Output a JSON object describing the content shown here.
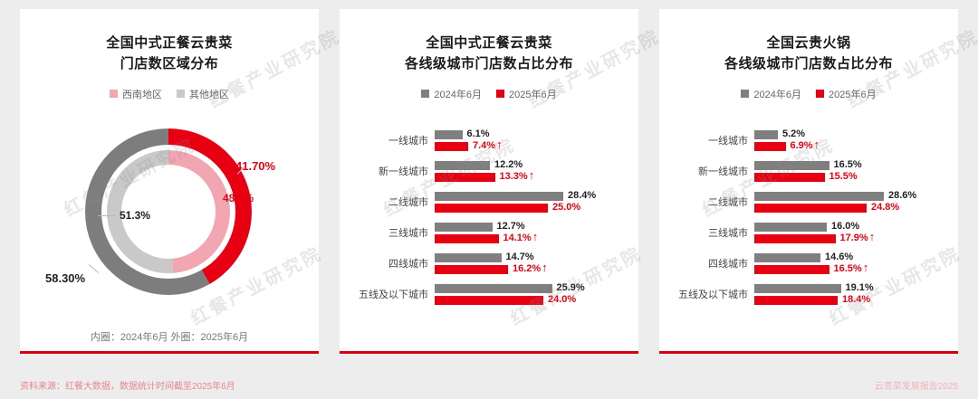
{
  "page": {
    "watermark": "红餐产业研究院",
    "footer_source": "资料来源：红餐大数据，数据统计时间截至2025年6月",
    "footer_report": "云贵菜发展报告2025"
  },
  "colors": {
    "accent_red": "#e60012",
    "bar_gray": "#7f7f7f",
    "inner_pink": "#f2a6b1",
    "inner_gray": "#c9c9c9",
    "outer_gray": "#7d7d7d",
    "panel_rule_red": "#d7000f"
  },
  "icons": {
    "up_arrow": "↑"
  },
  "chart_data": [
    {
      "type": "pie",
      "title_line1": "全国中式正餐云贵菜",
      "title_line2": "门店数区域分布",
      "legend": [
        {
          "label": "西南地区",
          "color": "#f2a6b1"
        },
        {
          "label": "其他地区",
          "color": "#c9c9c9"
        }
      ],
      "note": "内圈：2024年6月 外圈：2025年6月",
      "rings": [
        {
          "name": "内圈 2024年6月",
          "segments": [
            {
              "label": "西南地区",
              "value": 48.7,
              "display": "48.7%",
              "color": "#f2a6b1"
            },
            {
              "label": "其他地区",
              "value": 51.3,
              "display": "51.3%",
              "color": "#c9c9c9"
            }
          ]
        },
        {
          "name": "外圈 2025年6月",
          "segments": [
            {
              "label": "西南地区",
              "value": 41.7,
              "display": "41.70%",
              "color": "#e60012"
            },
            {
              "label": "其他地区",
              "value": 58.3,
              "display": "58.30%",
              "color": "#7d7d7d"
            }
          ]
        }
      ]
    },
    {
      "type": "bar",
      "orientation": "horizontal",
      "title_line1": "全国中式正餐云贵菜",
      "title_line2": "各线级城市门店数占比分布",
      "legend": [
        {
          "label": "2024年6月",
          "color": "#7f7f7f"
        },
        {
          "label": "2025年6月",
          "color": "#e60012"
        }
      ],
      "categories": [
        "一线城市",
        "新一线城市",
        "二线城市",
        "三线城市",
        "四线城市",
        "五线及以下城市"
      ],
      "xmax": 30,
      "series": [
        {
          "name": "2024年6月",
          "values": [
            6.1,
            12.2,
            28.4,
            12.7,
            14.7,
            25.9
          ],
          "labels": [
            "6.1%",
            "12.2%",
            "28.4%",
            "12.7%",
            "14.7%",
            "25.9%"
          ]
        },
        {
          "name": "2025年6月",
          "values": [
            7.4,
            13.3,
            25.0,
            14.1,
            16.2,
            24.0
          ],
          "labels": [
            "7.4%",
            "13.3%",
            "25.0%",
            "14.1%",
            "16.2%",
            "24.0%"
          ],
          "up_arrow": [
            true,
            true,
            false,
            true,
            true,
            false
          ]
        }
      ]
    },
    {
      "type": "bar",
      "orientation": "horizontal",
      "title_line1": "全国云贵火锅",
      "title_line2": "各线级城市门店数占比分布",
      "legend": [
        {
          "label": "2024年6月",
          "color": "#7f7f7f"
        },
        {
          "label": "2025年6月",
          "color": "#e60012"
        }
      ],
      "categories": [
        "一线城市",
        "新一线城市",
        "二线城市",
        "三线城市",
        "四线城市",
        "五线及以下城市"
      ],
      "xmax": 30,
      "series": [
        {
          "name": "2024年6月",
          "values": [
            5.2,
            16.5,
            28.6,
            16.0,
            14.6,
            19.1
          ],
          "labels": [
            "5.2%",
            "16.5%",
            "28.6%",
            "16.0%",
            "14.6%",
            "19.1%"
          ]
        },
        {
          "name": "2025年6月",
          "values": [
            6.9,
            15.5,
            24.8,
            17.9,
            16.5,
            18.4
          ],
          "labels": [
            "6.9%",
            "15.5%",
            "24.8%",
            "17.9%",
            "16.5%",
            "18.4%"
          ],
          "up_arrow": [
            true,
            false,
            false,
            true,
            true,
            false
          ]
        }
      ]
    }
  ]
}
